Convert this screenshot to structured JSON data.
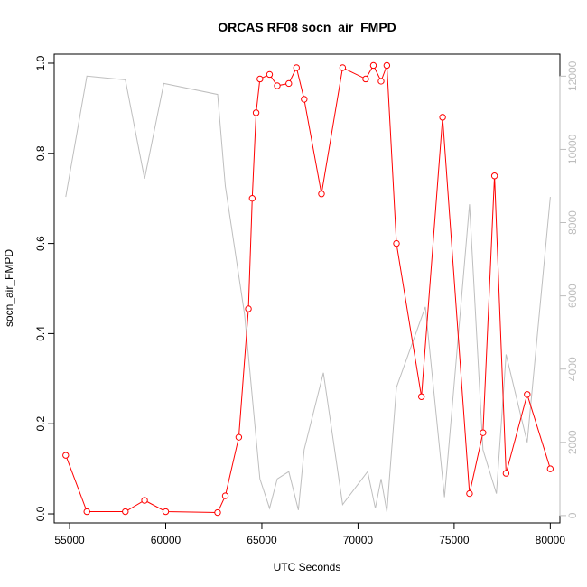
{
  "chart_data": {
    "type": "line",
    "title": "ORCAS RF08 socn_air_FMPD",
    "xlabel": "UTC Seconds",
    "ylabel": "socn_air_FMPD",
    "xlim": [
      54200,
      80500
    ],
    "ylim": [
      -0.02,
      1.02
    ],
    "y2lim": [
      -200,
      12600
    ],
    "xticks": [
      "55000",
      "60000",
      "65000",
      "70000",
      "75000",
      "80000"
    ],
    "yticks": [
      "0.0",
      "0.2",
      "0.4",
      "0.6",
      "0.8",
      "1.0"
    ],
    "y2ticks": [
      "0",
      "2000",
      "4000",
      "6000",
      "8000",
      "10000",
      "12000"
    ],
    "grid": false,
    "legend": "none",
    "colors": {
      "primary": "#ff0000",
      "secondary": "#bebebe"
    },
    "series": [
      {
        "axis": "left",
        "style": "line-with-open-circles",
        "x": [
          54800,
          55900,
          57900,
          58900,
          60000,
          62700,
          63100,
          63800,
          64300,
          64500,
          64700,
          64900,
          65400,
          65800,
          66400,
          66800,
          67200,
          68100,
          69200,
          70400,
          70800,
          71200,
          71500,
          72000,
          73300,
          74400,
          75800,
          76500,
          77100,
          77700,
          78800,
          80000
        ],
        "y": [
          0.13,
          0.005,
          0.005,
          0.03,
          0.005,
          0.003,
          0.04,
          0.17,
          0.455,
          0.7,
          0.89,
          0.965,
          0.975,
          0.95,
          0.955,
          0.99,
          0.92,
          0.71,
          0.99,
          0.965,
          0.995,
          0.96,
          0.995,
          0.6,
          0.26,
          0.88,
          0.045,
          0.18,
          0.75,
          0.09,
          0.265,
          0.1
        ]
      },
      {
        "axis": "right",
        "style": "line",
        "x": [
          54800,
          55900,
          57900,
          58900,
          59900,
          62700,
          63100,
          64100,
          64900,
          65400,
          65800,
          66400,
          66900,
          67200,
          68200,
          69200,
          70500,
          70900,
          71200,
          71500,
          72000,
          73500,
          74500,
          75800,
          76500,
          77200,
          77700,
          78800,
          80000
        ],
        "y": [
          8700,
          12000,
          11900,
          9200,
          11800,
          11500,
          9000,
          5500,
          1000,
          200,
          1000,
          1200,
          150,
          1800,
          3900,
          300,
          1200,
          200,
          1000,
          100,
          3500,
          5700,
          500,
          8500,
          1800,
          600,
          4400,
          2000,
          8700
        ]
      }
    ]
  }
}
